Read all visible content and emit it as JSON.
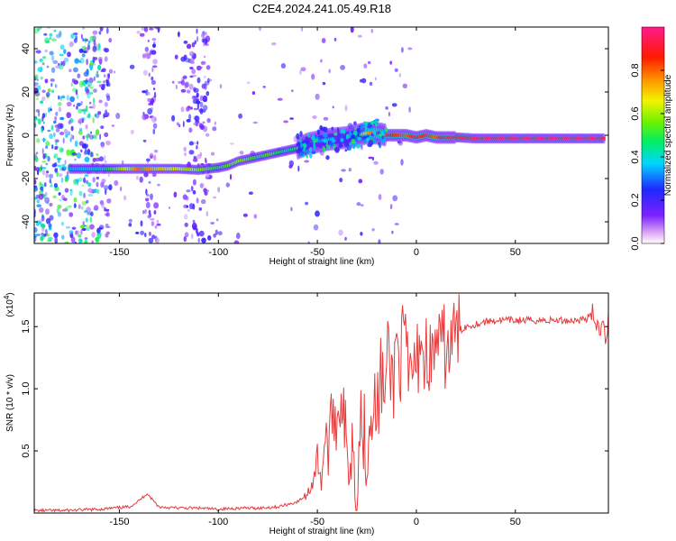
{
  "title": "C2E4.2024.241.05.49.R18",
  "spectrogram": {
    "xlabel": "Height of straight line (km)",
    "ylabel": "Frequency (Hz)",
    "xlim": [
      -193,
      97
    ],
    "ylim": [
      -50,
      50
    ],
    "xticks": [
      -150,
      -100,
      -50,
      0,
      50
    ],
    "xtick_labels": [
      "-150",
      "-100",
      "-50",
      "0",
      "50"
    ],
    "yticks": [
      -40,
      -20,
      0,
      20,
      40
    ],
    "ytick_labels": [
      "-40",
      "-20",
      "0",
      "20",
      "40"
    ]
  },
  "colorbar": {
    "label": "Normalized spectral amplitude",
    "range": [
      0,
      1
    ],
    "ticks": [
      0.0,
      0.2,
      0.4,
      0.6,
      0.8
    ],
    "tick_labels": [
      "0.0",
      "0.2",
      "0.4",
      "0.6",
      "0.8"
    ],
    "colormap": "rainbow (white-magenta-purple-blue-cyan-green-yellow-orange-red-pink)"
  },
  "snr_plot": {
    "xlabel": "Height of straight line (km)",
    "ylabel": "SNR (10 * v/v)",
    "multiplier_label": "(x10",
    "multiplier_exp": "4",
    "multiplier_close": ")",
    "xlim": [
      -193,
      97
    ],
    "ylim": [
      0,
      1.77
    ],
    "xticks": [
      -150,
      -100,
      -50,
      0,
      50
    ],
    "xtick_labels": [
      "-150",
      "-100",
      "-50",
      "0",
      "50"
    ],
    "yticks": [
      0.5,
      1.0,
      1.5
    ],
    "ytick_labels": [
      "0.5",
      "1.0",
      "1.5"
    ],
    "line_color": "#e83a3a"
  },
  "chart_data": [
    {
      "type": "heatmap",
      "title": "C2E4.2024.241.05.49.R18",
      "xlabel": "Height of straight line (km)",
      "ylabel": "Frequency (Hz)",
      "x_range": [
        -193,
        97
      ],
      "y_range": [
        -50,
        50
      ],
      "colorbar_label": "Normalized spectral amplitude",
      "ridge": {
        "x": [
          -175,
          -160,
          -150,
          -140,
          -130,
          -120,
          -110,
          -100,
          -95,
          -90,
          -85,
          -80,
          -75,
          -70,
          -65,
          -60,
          -55,
          -50,
          -45,
          -40,
          -35,
          -30,
          -25,
          -20,
          -15,
          -10,
          -5,
          0,
          5,
          10,
          15,
          20,
          30,
          40,
          50,
          60,
          70,
          80,
          90,
          95
        ],
        "y": [
          -15.5,
          -15.5,
          -15.5,
          -15.5,
          -15.5,
          -15.5,
          -16,
          -15,
          -14,
          -12,
          -11,
          -10,
          -9,
          -8,
          -7,
          -6,
          -4,
          -3,
          -2,
          -1.5,
          -1,
          0,
          1,
          1,
          0,
          0,
          0,
          -1,
          0,
          -1,
          -1,
          -1,
          -1.5,
          -1.5,
          -1.5,
          -1.5,
          -1.5,
          -1.5,
          -1.5,
          -1.5
        ],
        "amplitude": [
          0.35,
          0.4,
          0.6,
          0.8,
          0.7,
          0.65,
          0.6,
          0.5,
          0.55,
          0.6,
          0.55,
          0.5,
          0.55,
          0.5,
          0.45,
          0.5,
          0.4,
          0.3,
          0.4,
          0.35,
          0.4,
          0.45,
          0.7,
          0.85,
          0.9,
          0.85,
          0.8,
          0.9,
          0.85,
          0.8,
          0.95,
          0.9,
          0.95,
          0.97,
          0.97,
          0.98,
          0.98,
          0.98,
          0.97,
          0.95
        ]
      }
    },
    {
      "type": "line",
      "xlabel": "Height of straight line (km)",
      "ylabel": "SNR (10 * v/v)",
      "y_multiplier": "x10^4",
      "xlim": [
        -193,
        97
      ],
      "ylim": [
        0,
        1.77
      ],
      "series": [
        {
          "x": [
            -193,
            -180,
            -160,
            -145,
            -140,
            -136,
            -134,
            -130,
            -120,
            -110,
            -100,
            -90,
            -80,
            -70,
            -60,
            -55,
            -52,
            -50,
            -48,
            -46,
            -44,
            -42,
            -40,
            -38,
            -35,
            -32,
            -30,
            -28,
            -25,
            -22,
            -20,
            -18,
            -16,
            -14,
            -12,
            -10,
            -8,
            -6,
            -4,
            -2,
            0,
            2,
            4,
            6,
            8,
            10,
            12,
            14,
            16,
            18,
            20,
            22,
            25,
            30,
            35,
            40,
            50,
            60,
            70,
            80,
            85,
            88,
            90,
            92,
            94,
            96,
            97
          ],
          "y": [
            0.02,
            0.02,
            0.03,
            0.05,
            0.1,
            0.16,
            0.12,
            0.05,
            0.04,
            0.04,
            0.03,
            0.04,
            0.04,
            0.05,
            0.09,
            0.15,
            0.28,
            0.45,
            0.3,
            0.6,
            0.5,
            0.9,
            0.7,
            1.05,
            0.4,
            0.6,
            0.2,
            0.8,
            0.5,
            1.0,
            0.7,
            1.15,
            0.9,
            1.3,
            1.0,
            1.4,
            1.2,
            1.45,
            1.0,
            1.2,
            1.1,
            1.5,
            1.2,
            1.35,
            1.15,
            1.45,
            1.25,
            1.35,
            1.3,
            1.4,
            1.42,
            1.47,
            1.5,
            1.52,
            1.54,
            1.55,
            1.55,
            1.55,
            1.55,
            1.55,
            1.56,
            1.58,
            1.6,
            1.45,
            1.62,
            1.4,
            1.62
          ]
        }
      ]
    }
  ]
}
